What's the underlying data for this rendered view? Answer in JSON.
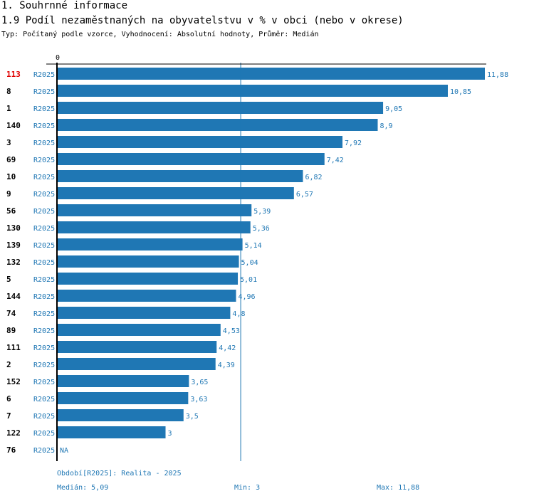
{
  "header": {
    "section_title": "1. Souhrnné informace",
    "chart_title": "1.9 Podíl nezaměstnaných na obyvatelstvu v % v obci (nebo v okrese)",
    "subtitle": "Typ: Počítaný podle vzorce, Vyhodnocení: Absolutní hodnoty, Průměr: Medián"
  },
  "colors": {
    "bar": "#1f77b4",
    "highlight": "#e00000",
    "label": "#1f77b4",
    "axis": "#000000"
  },
  "chart_data": {
    "type": "bar",
    "orientation": "horizontal",
    "title": "1.9 Podíl nezaměstnaných na obyvatelstvu v % v obci (nebo v okrese)",
    "axis_zero_label": "0",
    "xlim": [
      0,
      11.88
    ],
    "median_value": 5.09,
    "highlight_index": 0,
    "rows": [
      {
        "id": "113",
        "period": "R2025",
        "value": 11.88,
        "label": "11,88"
      },
      {
        "id": "8",
        "period": "R2025",
        "value": 10.85,
        "label": "10,85"
      },
      {
        "id": "1",
        "period": "R2025",
        "value": 9.05,
        "label": "9,05"
      },
      {
        "id": "140",
        "period": "R2025",
        "value": 8.9,
        "label": "8,9"
      },
      {
        "id": "3",
        "period": "R2025",
        "value": 7.92,
        "label": "7,92"
      },
      {
        "id": "69",
        "period": "R2025",
        "value": 7.42,
        "label": "7,42"
      },
      {
        "id": "10",
        "period": "R2025",
        "value": 6.82,
        "label": "6,82"
      },
      {
        "id": "9",
        "period": "R2025",
        "value": 6.57,
        "label": "6,57"
      },
      {
        "id": "56",
        "period": "R2025",
        "value": 5.39,
        "label": "5,39"
      },
      {
        "id": "130",
        "period": "R2025",
        "value": 5.36,
        "label": "5,36"
      },
      {
        "id": "139",
        "period": "R2025",
        "value": 5.14,
        "label": "5,14"
      },
      {
        "id": "132",
        "period": "R2025",
        "value": 5.04,
        "label": "5,04"
      },
      {
        "id": "5",
        "period": "R2025",
        "value": 5.01,
        "label": "5,01"
      },
      {
        "id": "144",
        "period": "R2025",
        "value": 4.96,
        "label": "4,96"
      },
      {
        "id": "74",
        "period": "R2025",
        "value": 4.8,
        "label": "4,8"
      },
      {
        "id": "89",
        "period": "R2025",
        "value": 4.53,
        "label": "4,53"
      },
      {
        "id": "111",
        "period": "R2025",
        "value": 4.42,
        "label": "4,42"
      },
      {
        "id": "2",
        "period": "R2025",
        "value": 4.39,
        "label": "4,39"
      },
      {
        "id": "152",
        "period": "R2025",
        "value": 3.65,
        "label": "3,65"
      },
      {
        "id": "6",
        "period": "R2025",
        "value": 3.63,
        "label": "3,63"
      },
      {
        "id": "7",
        "period": "R2025",
        "value": 3.5,
        "label": "3,5"
      },
      {
        "id": "122",
        "period": "R2025",
        "value": 3,
        "label": "3"
      },
      {
        "id": "76",
        "period": "R2025",
        "value": null,
        "label": "NA"
      }
    ]
  },
  "footer": {
    "period_note": "Období[R2025]: Realita - 2025",
    "median": "Medián: 5,09",
    "min": "Min: 3",
    "max": "Max: 11,88"
  }
}
